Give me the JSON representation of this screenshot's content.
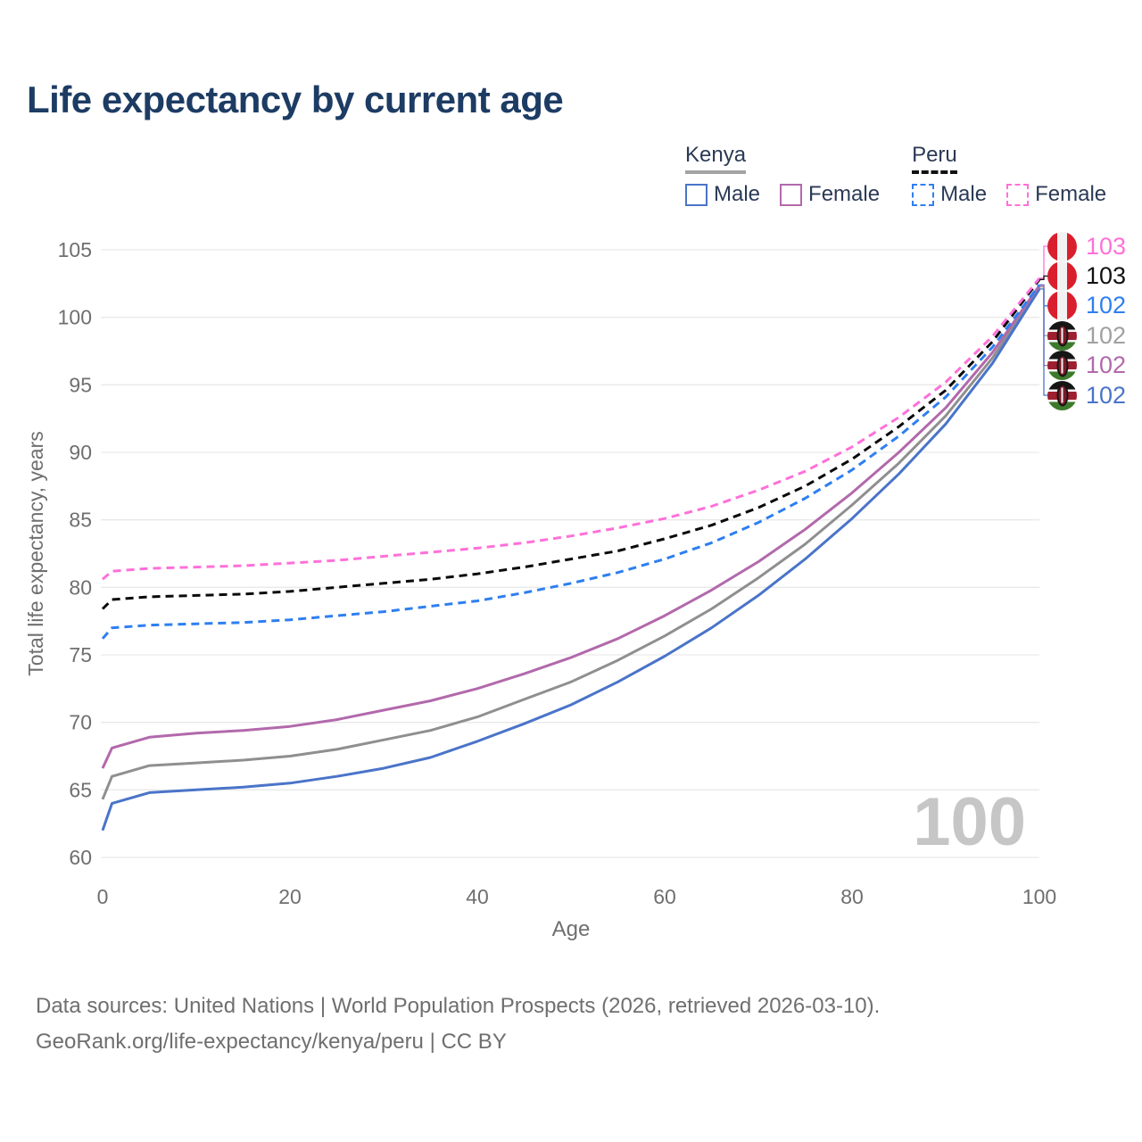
{
  "title": "Life expectancy by current age",
  "watermark": "100",
  "legend": {
    "groups": [
      {
        "label": "Kenya",
        "line_style": "solid",
        "underline_color": "#a3a3a3",
        "items": [
          {
            "label": "Male",
            "color": "#4a74c9",
            "dash": false
          },
          {
            "label": "Female",
            "color": "#b269ab",
            "dash": false
          }
        ]
      },
      {
        "label": "Peru",
        "line_style": "dashed",
        "underline_color": "#111111",
        "items": [
          {
            "label": "Male",
            "color": "#2e7ff0",
            "dash": true
          },
          {
            "label": "Female",
            "color": "#ff70d9",
            "dash": true
          }
        ]
      }
    ]
  },
  "chart_data": {
    "type": "line",
    "title": "Life expectancy by current age",
    "xlabel": "Age",
    "ylabel": "Total life expectancy, years",
    "xlim": [
      0,
      100
    ],
    "ylim": [
      60,
      105
    ],
    "x_ticks": [
      0,
      20,
      40,
      60,
      80,
      100
    ],
    "y_ticks": [
      60,
      65,
      70,
      75,
      80,
      85,
      90,
      95,
      100,
      105
    ],
    "grid": "horizontal",
    "legend_position": "top-right",
    "x": [
      0,
      1,
      5,
      10,
      15,
      20,
      25,
      30,
      35,
      40,
      45,
      50,
      55,
      60,
      65,
      70,
      75,
      80,
      85,
      90,
      95,
      100
    ],
    "series": [
      {
        "name": "Kenya",
        "country": "Kenya",
        "sex": "Both",
        "color": "#8f8f8f",
        "dash": false,
        "end_label": "102",
        "values": [
          64.3,
          66.0,
          66.8,
          67.0,
          67.2,
          67.5,
          68.0,
          68.7,
          69.4,
          70.4,
          71.7,
          73.0,
          74.6,
          76.4,
          78.4,
          80.7,
          83.2,
          86.1,
          89.2,
          92.7,
          97.0,
          102.25
        ]
      },
      {
        "name": "Kenya Male",
        "country": "Kenya",
        "sex": "Male",
        "color": "#4a74c9",
        "dash": false,
        "end_label": "102",
        "values": [
          62.0,
          64.0,
          64.8,
          65.0,
          65.2,
          65.5,
          66.0,
          66.6,
          67.4,
          68.6,
          69.9,
          71.3,
          73.0,
          74.9,
          77.0,
          79.4,
          82.1,
          85.1,
          88.4,
          92.1,
          96.6,
          102.1
        ]
      },
      {
        "name": "Kenya Female",
        "country": "Kenya",
        "sex": "Female",
        "color": "#b269ab",
        "dash": false,
        "end_label": "102",
        "values": [
          66.6,
          68.1,
          68.9,
          69.2,
          69.4,
          69.7,
          70.2,
          70.9,
          71.6,
          72.5,
          73.6,
          74.8,
          76.2,
          77.9,
          79.8,
          81.9,
          84.3,
          87.0,
          90.0,
          93.3,
          97.4,
          102.35
        ]
      },
      {
        "name": "Peru Male",
        "country": "Peru",
        "sex": "Male",
        "color": "#2e7ff0",
        "dash": true,
        "end_label": "102",
        "values": [
          76.2,
          77.0,
          77.2,
          77.3,
          77.4,
          77.6,
          77.9,
          78.2,
          78.6,
          79.0,
          79.6,
          80.3,
          81.1,
          82.1,
          83.3,
          84.8,
          86.6,
          88.7,
          91.2,
          94.1,
          97.8,
          102.4
        ]
      },
      {
        "name": "Peru",
        "country": "Peru",
        "sex": "Both",
        "color": "#0a0a0a",
        "dash": true,
        "end_label": "103",
        "values": [
          78.4,
          79.1,
          79.3,
          79.4,
          79.5,
          79.7,
          80.0,
          80.3,
          80.6,
          81.0,
          81.5,
          82.1,
          82.7,
          83.6,
          84.6,
          85.9,
          87.5,
          89.5,
          91.9,
          94.6,
          98.2,
          102.8
        ]
      },
      {
        "name": "Peru Female",
        "country": "Peru",
        "sex": "Female",
        "color": "#ff70d9",
        "dash": true,
        "end_label": "103",
        "values": [
          80.6,
          81.2,
          81.4,
          81.5,
          81.6,
          81.8,
          82.0,
          82.3,
          82.6,
          82.9,
          83.3,
          83.8,
          84.4,
          85.1,
          86.0,
          87.2,
          88.6,
          90.4,
          92.6,
          95.2,
          98.6,
          102.9
        ]
      }
    ]
  },
  "end_labels": [
    {
      "series": "Peru Female",
      "value": "103",
      "color": "#ff70d9",
      "flag": "peru"
    },
    {
      "series": "Peru",
      "value": "103",
      "color": "#111111",
      "flag": "peru"
    },
    {
      "series": "Peru Male",
      "value": "102",
      "color": "#2e7ff0",
      "flag": "peru"
    },
    {
      "series": "Kenya",
      "value": "102",
      "color": "#a0a0a0",
      "flag": "kenya"
    },
    {
      "series": "Kenya Female",
      "value": "102",
      "color": "#b269ab",
      "flag": "kenya"
    },
    {
      "series": "Kenya Male",
      "value": "102",
      "color": "#4a74c9",
      "flag": "kenya"
    }
  ],
  "flag_colors": {
    "peru_red": "#d91f2e",
    "peru_white": "#f2f2f2",
    "kenya_black": "#161616",
    "kenya_red": "#9e1f30",
    "kenya_green": "#3d7a2c",
    "kenya_white": "#f7f7f7"
  },
  "footer": {
    "line1": "Data sources: United Nations | World Population Prospects (2026, retrieved 2026-03-10).",
    "line2": "GeoRank.org/life-expectancy/kenya/peru | CC BY"
  }
}
